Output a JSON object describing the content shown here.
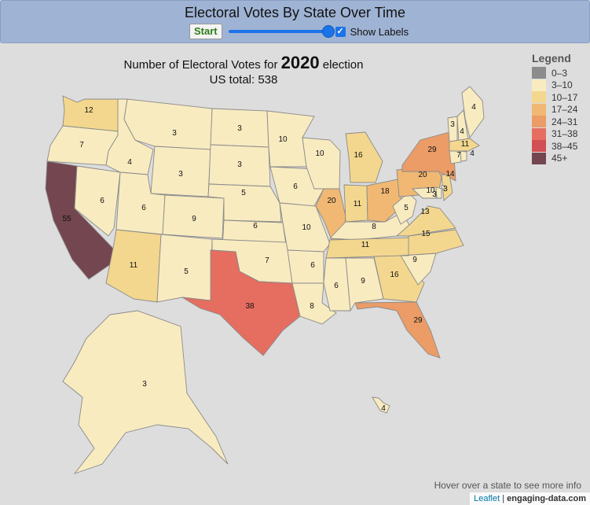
{
  "header": {
    "title": "Electoral Votes By State Over Time",
    "start_label": "Start",
    "show_labels_label": "Show Labels",
    "show_labels_checked": true,
    "year_slider_fraction": 1.0
  },
  "map": {
    "caption_prefix": "Number of Electoral Votes for",
    "caption_year": "2020",
    "caption_suffix": "election",
    "caption_total": "US total: 538",
    "hover_hint": "Hover over a state to see more info",
    "attribution": {
      "leaflet": "Leaflet",
      "separator": "|",
      "source": "engaging-data.com"
    }
  },
  "legend": {
    "title": "Legend",
    "items": [
      {
        "label": "0–3",
        "color": "#8c8c8c"
      },
      {
        "label": "3–10",
        "color": "#f8ebc0"
      },
      {
        "label": "10–17",
        "color": "#f3d78e"
      },
      {
        "label": "17–24",
        "color": "#f0b873"
      },
      {
        "label": "24–31",
        "color": "#ec9c66"
      },
      {
        "label": "31–38",
        "color": "#e56e60"
      },
      {
        "label": "38–45",
        "color": "#d24f53"
      },
      {
        "label": "45+",
        "color": "#744650"
      }
    ]
  },
  "states": {
    "WA": 12,
    "OR": 7,
    "CA": 55,
    "ID": 4,
    "NV": 6,
    "MT": 3,
    "WY": 3,
    "UT": 6,
    "AZ": 11,
    "CO": 9,
    "NM": 5,
    "ND": 3,
    "SD": 3,
    "NE": 5,
    "KS": 6,
    "OK": 7,
    "TX": 38,
    "MN": 10,
    "IA": 6,
    "MO": 10,
    "AR": 6,
    "LA": 8,
    "WI": 10,
    "IL": 20,
    "MI": 16,
    "IN": 11,
    "OH": 18,
    "KY": 8,
    "TN": 11,
    "MS": 6,
    "AL": 9,
    "GA": 16,
    "FL": 29,
    "SC": 9,
    "NC": 15,
    "VA": 13,
    "WV": 5,
    "PA": 20,
    "NY": 29,
    "ME": 4,
    "VT": 3,
    "NH": 4,
    "MA": 11,
    "CT": 7,
    "RI": 4,
    "NJ": 14,
    "DE": 3,
    "MD": 10,
    "DC": 3,
    "AK": 3,
    "HI": 4
  }
}
